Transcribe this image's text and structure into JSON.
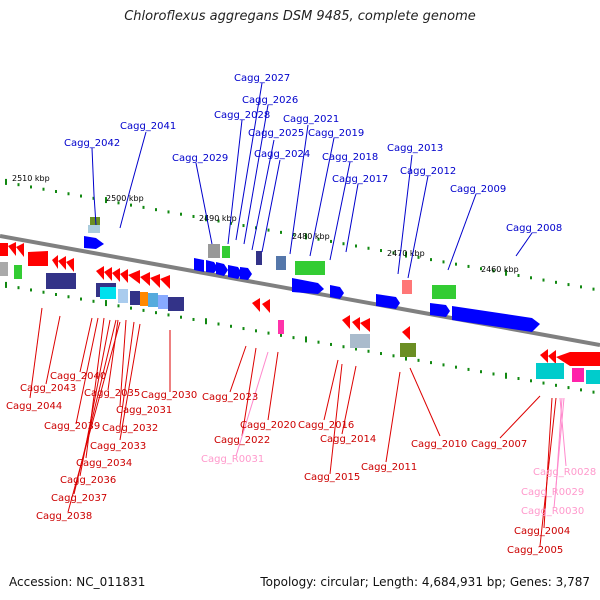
{
  "title": "Chloroflexus aggregans DSM 9485, complete genome",
  "accession": "Accession: NC_011831",
  "summary": "Topology: circular; Length: 4,684,931 bp; Genes: 3,787",
  "colors": {
    "forward": "#0000ff",
    "reverse": "#ff0000",
    "rna": "#ff88cc",
    "backbone": "#808080"
  },
  "scale": [
    "2510 kbp",
    "2500 kbp",
    "2490 kbp",
    "2480 kbp",
    "2470 kbp",
    "2460 kbp"
  ],
  "top_labels": [
    "Cagg_2027",
    "Cagg_2026",
    "Cagg_2028",
    "Cagg_2041",
    "Cagg_2021",
    "Cagg_2025",
    "Cagg_2019",
    "Cagg_2042",
    "Cagg_2013",
    "Cagg_2029",
    "Cagg_2024",
    "Cagg_2018",
    "Cagg_2012",
    "Cagg_2017",
    "Cagg_2009",
    "Cagg_2008"
  ],
  "bottom_labels": [
    "Cagg_2040",
    "Cagg_2043",
    "Cagg_2035",
    "Cagg_2030",
    "Cagg_2044",
    "Cagg_2031",
    "Cagg_2023",
    "Cagg_2039",
    "Cagg_2032",
    "Cagg_2020",
    "Cagg_2016",
    "Cagg_2033",
    "Cagg_2022",
    "Cagg_2014",
    "Cagg_2010",
    "Cagg_2007",
    "Cagg_2034",
    "Cagg_R0031",
    "Cagg_2011",
    "Cagg_2036",
    "Cagg_2015",
    "Cagg_R0028",
    "Cagg_2037",
    "Cagg_R0029",
    "Cagg_2038",
    "Cagg_R0030",
    "Cagg_2004",
    "Cagg_2005"
  ]
}
